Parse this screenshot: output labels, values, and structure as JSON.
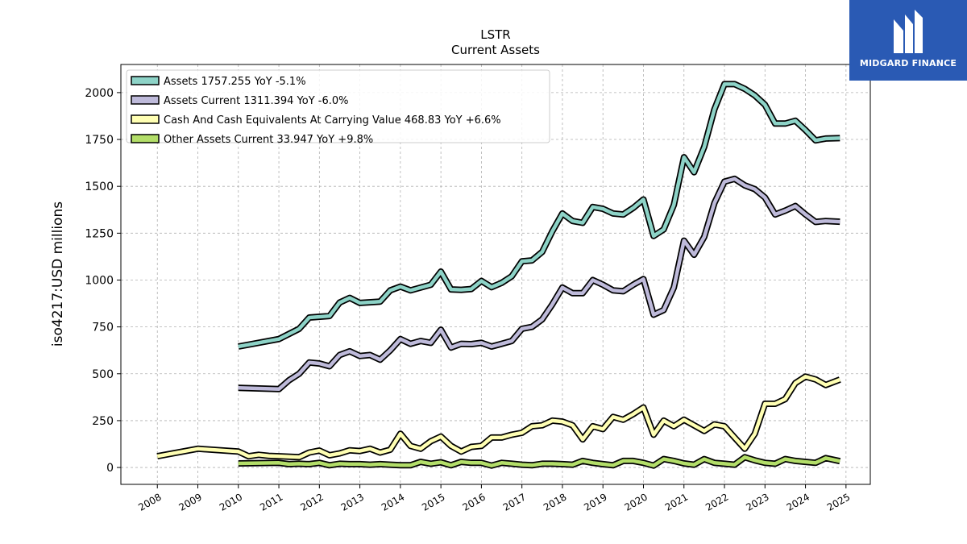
{
  "chart_data": {
    "type": "line",
    "title": "LSTR",
    "subtitle": "Current  Assets",
    "ylabel": "iso4217:USD  millions",
    "xlabel": "",
    "xlim": [
      2007.1,
      2025.6
    ],
    "ylim": [
      -90,
      2150
    ],
    "x_ticks": [
      "2008",
      "2009",
      "2010",
      "2011",
      "2012",
      "2013",
      "2014",
      "2015",
      "2016",
      "2017",
      "2018",
      "2019",
      "2020",
      "2021",
      "2022",
      "2023",
      "2024",
      "2025"
    ],
    "y_ticks": [
      0,
      250,
      500,
      750,
      1000,
      1250,
      1500,
      1750,
      2000
    ],
    "grid": true,
    "legend_position": "top-left",
    "series": [
      {
        "name": "Assets",
        "legend": "Assets  1757.255 YoY -5.1%",
        "color": "#8dd3c7",
        "points": [
          [
            2010.0,
            645
          ],
          [
            2011.0,
            685
          ],
          [
            2011.5,
            740
          ],
          [
            2011.75,
            800
          ],
          [
            2012.25,
            808
          ],
          [
            2012.5,
            880
          ],
          [
            2012.75,
            905
          ],
          [
            2013.0,
            878
          ],
          [
            2013.5,
            885
          ],
          [
            2013.75,
            945
          ],
          [
            2014.0,
            965
          ],
          [
            2014.25,
            945
          ],
          [
            2014.5,
            960
          ],
          [
            2014.75,
            975
          ],
          [
            2015.0,
            1045
          ],
          [
            2015.25,
            950
          ],
          [
            2015.5,
            948
          ],
          [
            2015.75,
            952
          ],
          [
            2016.0,
            995
          ],
          [
            2016.25,
            962
          ],
          [
            2016.5,
            985
          ],
          [
            2016.75,
            1020
          ],
          [
            2017.0,
            1100
          ],
          [
            2017.25,
            1105
          ],
          [
            2017.5,
            1150
          ],
          [
            2017.75,
            1260
          ],
          [
            2018.0,
            1355
          ],
          [
            2018.25,
            1315
          ],
          [
            2018.5,
            1305
          ],
          [
            2018.75,
            1390
          ],
          [
            2019.0,
            1380
          ],
          [
            2019.25,
            1355
          ],
          [
            2019.5,
            1350
          ],
          [
            2019.75,
            1385
          ],
          [
            2020.0,
            1430
          ],
          [
            2020.25,
            1235
          ],
          [
            2020.5,
            1270
          ],
          [
            2020.75,
            1400
          ],
          [
            2021.0,
            1655
          ],
          [
            2021.25,
            1575
          ],
          [
            2021.5,
            1710
          ],
          [
            2021.75,
            1910
          ],
          [
            2022.0,
            2045
          ],
          [
            2022.25,
            2045
          ],
          [
            2022.5,
            2020
          ],
          [
            2022.75,
            1985
          ],
          [
            2023.0,
            1935
          ],
          [
            2023.25,
            1835
          ],
          [
            2023.5,
            1835
          ],
          [
            2023.75,
            1850
          ],
          [
            2024.0,
            1800
          ],
          [
            2024.25,
            1745
          ],
          [
            2024.5,
            1755
          ],
          [
            2024.85,
            1757
          ]
        ]
      },
      {
        "name": "Assets Current",
        "legend": "Assets Current  1311.394 YoY -6.0%",
        "color": "#bebada",
        "points": [
          [
            2010.0,
            425
          ],
          [
            2011.0,
            418
          ],
          [
            2011.25,
            465
          ],
          [
            2011.5,
            500
          ],
          [
            2011.75,
            560
          ],
          [
            2012.0,
            555
          ],
          [
            2012.25,
            540
          ],
          [
            2012.5,
            600
          ],
          [
            2012.75,
            620
          ],
          [
            2013.0,
            595
          ],
          [
            2013.25,
            600
          ],
          [
            2013.5,
            575
          ],
          [
            2013.75,
            625
          ],
          [
            2014.0,
            685
          ],
          [
            2014.25,
            660
          ],
          [
            2014.5,
            675
          ],
          [
            2014.75,
            665
          ],
          [
            2015.0,
            735
          ],
          [
            2015.25,
            640
          ],
          [
            2015.5,
            660
          ],
          [
            2015.75,
            658
          ],
          [
            2016.0,
            665
          ],
          [
            2016.25,
            645
          ],
          [
            2016.5,
            660
          ],
          [
            2016.75,
            675
          ],
          [
            2017.0,
            740
          ],
          [
            2017.25,
            750
          ],
          [
            2017.5,
            790
          ],
          [
            2017.75,
            870
          ],
          [
            2018.0,
            960
          ],
          [
            2018.25,
            930
          ],
          [
            2018.5,
            930
          ],
          [
            2018.75,
            1000
          ],
          [
            2019.0,
            975
          ],
          [
            2019.25,
            945
          ],
          [
            2019.5,
            940
          ],
          [
            2019.75,
            975
          ],
          [
            2020.0,
            1005
          ],
          [
            2020.25,
            815
          ],
          [
            2020.5,
            840
          ],
          [
            2020.75,
            960
          ],
          [
            2021.0,
            1210
          ],
          [
            2021.25,
            1135
          ],
          [
            2021.5,
            1230
          ],
          [
            2021.75,
            1410
          ],
          [
            2022.0,
            1525
          ],
          [
            2022.25,
            1540
          ],
          [
            2022.5,
            1505
          ],
          [
            2022.75,
            1485
          ],
          [
            2023.0,
            1440
          ],
          [
            2023.25,
            1350
          ],
          [
            2023.5,
            1370
          ],
          [
            2023.75,
            1395
          ],
          [
            2024.0,
            1350
          ],
          [
            2024.25,
            1310
          ],
          [
            2024.5,
            1315
          ],
          [
            2024.85,
            1311
          ]
        ]
      },
      {
        "name": "Cash And Cash Equivalents At Carrying Value",
        "legend": "Cash And Cash Equivalents At Carrying Value  468.83 YoY +6.6%",
        "color": "#ffffb3",
        "points": [
          [
            2008.0,
            60
          ],
          [
            2009.0,
            100
          ],
          [
            2010.0,
            85
          ],
          [
            2010.25,
            60
          ],
          [
            2010.5,
            68
          ],
          [
            2010.75,
            62
          ],
          [
            2011.0,
            60
          ],
          [
            2011.5,
            55
          ],
          [
            2011.75,
            80
          ],
          [
            2012.0,
            90
          ],
          [
            2012.25,
            65
          ],
          [
            2012.5,
            75
          ],
          [
            2012.75,
            92
          ],
          [
            2013.0,
            88
          ],
          [
            2013.25,
            100
          ],
          [
            2013.5,
            80
          ],
          [
            2013.75,
            95
          ],
          [
            2014.0,
            180
          ],
          [
            2014.25,
            115
          ],
          [
            2014.5,
            100
          ],
          [
            2014.75,
            140
          ],
          [
            2015.0,
            165
          ],
          [
            2015.25,
            115
          ],
          [
            2015.5,
            85
          ],
          [
            2015.75,
            110
          ],
          [
            2016.0,
            115
          ],
          [
            2016.25,
            160
          ],
          [
            2016.5,
            160
          ],
          [
            2016.75,
            175
          ],
          [
            2017.0,
            185
          ],
          [
            2017.25,
            220
          ],
          [
            2017.5,
            225
          ],
          [
            2017.75,
            250
          ],
          [
            2018.0,
            245
          ],
          [
            2018.25,
            225
          ],
          [
            2018.5,
            150
          ],
          [
            2018.75,
            220
          ],
          [
            2019.0,
            205
          ],
          [
            2019.25,
            270
          ],
          [
            2019.5,
            255
          ],
          [
            2019.75,
            285
          ],
          [
            2020.0,
            320
          ],
          [
            2020.25,
            175
          ],
          [
            2020.5,
            250
          ],
          [
            2020.75,
            220
          ],
          [
            2021.0,
            255
          ],
          [
            2021.25,
            225
          ],
          [
            2021.5,
            195
          ],
          [
            2021.75,
            230
          ],
          [
            2022.0,
            220
          ],
          [
            2022.25,
            160
          ],
          [
            2022.5,
            100
          ],
          [
            2022.75,
            180
          ],
          [
            2023.0,
            340
          ],
          [
            2023.25,
            340
          ],
          [
            2023.5,
            365
          ],
          [
            2023.75,
            450
          ],
          [
            2024.0,
            485
          ],
          [
            2024.25,
            470
          ],
          [
            2024.5,
            440
          ],
          [
            2024.85,
            469
          ]
        ]
      },
      {
        "name": "Other Assets Current",
        "legend": "Other Assets Current  33.947 YoY +9.8%",
        "color": "#b3de69",
        "points": [
          [
            2010.0,
            22
          ],
          [
            2011.0,
            25
          ],
          [
            2011.25,
            18
          ],
          [
            2011.5,
            20
          ],
          [
            2011.75,
            18
          ],
          [
            2012.0,
            25
          ],
          [
            2012.25,
            12
          ],
          [
            2012.5,
            20
          ],
          [
            2012.75,
            18
          ],
          [
            2013.0,
            18
          ],
          [
            2013.25,
            15
          ],
          [
            2013.5,
            18
          ],
          [
            2013.75,
            15
          ],
          [
            2014.0,
            12
          ],
          [
            2014.25,
            12
          ],
          [
            2014.5,
            30
          ],
          [
            2014.75,
            20
          ],
          [
            2015.0,
            28
          ],
          [
            2015.25,
            12
          ],
          [
            2015.5,
            30
          ],
          [
            2015.75,
            25
          ],
          [
            2016.0,
            25
          ],
          [
            2016.25,
            10
          ],
          [
            2016.5,
            25
          ],
          [
            2016.75,
            20
          ],
          [
            2017.0,
            15
          ],
          [
            2017.25,
            12
          ],
          [
            2017.5,
            20
          ],
          [
            2017.75,
            20
          ],
          [
            2018.0,
            18
          ],
          [
            2018.25,
            15
          ],
          [
            2018.5,
            35
          ],
          [
            2018.75,
            25
          ],
          [
            2019.0,
            18
          ],
          [
            2019.25,
            12
          ],
          [
            2019.5,
            35
          ],
          [
            2019.75,
            35
          ],
          [
            2020.0,
            25
          ],
          [
            2020.25,
            10
          ],
          [
            2020.5,
            45
          ],
          [
            2020.75,
            35
          ],
          [
            2021.0,
            22
          ],
          [
            2021.25,
            15
          ],
          [
            2021.5,
            45
          ],
          [
            2021.75,
            25
          ],
          [
            2022.0,
            20
          ],
          [
            2022.25,
            15
          ],
          [
            2022.5,
            55
          ],
          [
            2022.75,
            38
          ],
          [
            2023.0,
            25
          ],
          [
            2023.25,
            20
          ],
          [
            2023.5,
            45
          ],
          [
            2023.75,
            35
          ],
          [
            2024.0,
            30
          ],
          [
            2024.25,
            25
          ],
          [
            2024.5,
            50
          ],
          [
            2024.85,
            34
          ]
        ]
      }
    ]
  },
  "logo": {
    "text": "MIDGARD FINANCE"
  }
}
